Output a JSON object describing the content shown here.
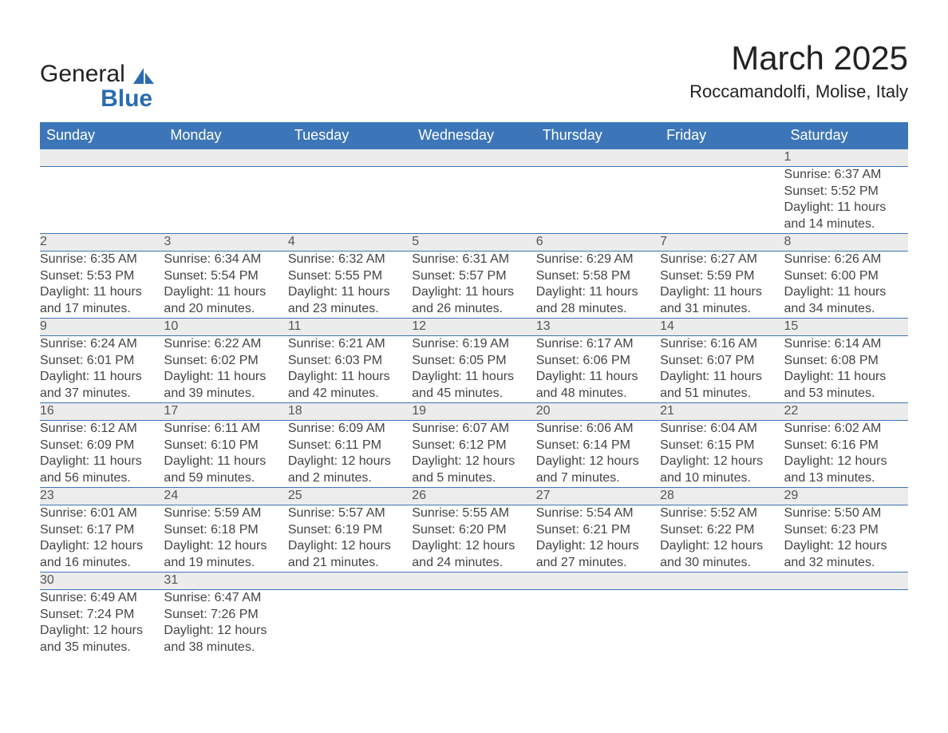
{
  "logo": {
    "line1": "General",
    "line2": "Blue"
  },
  "title": "March 2025",
  "subtitle": "Roccamandolfi, Molise, Italy",
  "header_bg": "#3d76b8",
  "days_of_week": [
    "Sunday",
    "Monday",
    "Tuesday",
    "Wednesday",
    "Thursday",
    "Friday",
    "Saturday"
  ],
  "weeks": [
    [
      null,
      null,
      null,
      null,
      null,
      null,
      {
        "n": "1",
        "sr": "Sunrise: 6:37 AM",
        "ss": "Sunset: 5:52 PM",
        "d1": "Daylight: 11 hours",
        "d2": "and 14 minutes."
      }
    ],
    [
      {
        "n": "2",
        "sr": "Sunrise: 6:35 AM",
        "ss": "Sunset: 5:53 PM",
        "d1": "Daylight: 11 hours",
        "d2": "and 17 minutes."
      },
      {
        "n": "3",
        "sr": "Sunrise: 6:34 AM",
        "ss": "Sunset: 5:54 PM",
        "d1": "Daylight: 11 hours",
        "d2": "and 20 minutes."
      },
      {
        "n": "4",
        "sr": "Sunrise: 6:32 AM",
        "ss": "Sunset: 5:55 PM",
        "d1": "Daylight: 11 hours",
        "d2": "and 23 minutes."
      },
      {
        "n": "5",
        "sr": "Sunrise: 6:31 AM",
        "ss": "Sunset: 5:57 PM",
        "d1": "Daylight: 11 hours",
        "d2": "and 26 minutes."
      },
      {
        "n": "6",
        "sr": "Sunrise: 6:29 AM",
        "ss": "Sunset: 5:58 PM",
        "d1": "Daylight: 11 hours",
        "d2": "and 28 minutes."
      },
      {
        "n": "7",
        "sr": "Sunrise: 6:27 AM",
        "ss": "Sunset: 5:59 PM",
        "d1": "Daylight: 11 hours",
        "d2": "and 31 minutes."
      },
      {
        "n": "8",
        "sr": "Sunrise: 6:26 AM",
        "ss": "Sunset: 6:00 PM",
        "d1": "Daylight: 11 hours",
        "d2": "and 34 minutes."
      }
    ],
    [
      {
        "n": "9",
        "sr": "Sunrise: 6:24 AM",
        "ss": "Sunset: 6:01 PM",
        "d1": "Daylight: 11 hours",
        "d2": "and 37 minutes."
      },
      {
        "n": "10",
        "sr": "Sunrise: 6:22 AM",
        "ss": "Sunset: 6:02 PM",
        "d1": "Daylight: 11 hours",
        "d2": "and 39 minutes."
      },
      {
        "n": "11",
        "sr": "Sunrise: 6:21 AM",
        "ss": "Sunset: 6:03 PM",
        "d1": "Daylight: 11 hours",
        "d2": "and 42 minutes."
      },
      {
        "n": "12",
        "sr": "Sunrise: 6:19 AM",
        "ss": "Sunset: 6:05 PM",
        "d1": "Daylight: 11 hours",
        "d2": "and 45 minutes."
      },
      {
        "n": "13",
        "sr": "Sunrise: 6:17 AM",
        "ss": "Sunset: 6:06 PM",
        "d1": "Daylight: 11 hours",
        "d2": "and 48 minutes."
      },
      {
        "n": "14",
        "sr": "Sunrise: 6:16 AM",
        "ss": "Sunset: 6:07 PM",
        "d1": "Daylight: 11 hours",
        "d2": "and 51 minutes."
      },
      {
        "n": "15",
        "sr": "Sunrise: 6:14 AM",
        "ss": "Sunset: 6:08 PM",
        "d1": "Daylight: 11 hours",
        "d2": "and 53 minutes."
      }
    ],
    [
      {
        "n": "16",
        "sr": "Sunrise: 6:12 AM",
        "ss": "Sunset: 6:09 PM",
        "d1": "Daylight: 11 hours",
        "d2": "and 56 minutes."
      },
      {
        "n": "17",
        "sr": "Sunrise: 6:11 AM",
        "ss": "Sunset: 6:10 PM",
        "d1": "Daylight: 11 hours",
        "d2": "and 59 minutes."
      },
      {
        "n": "18",
        "sr": "Sunrise: 6:09 AM",
        "ss": "Sunset: 6:11 PM",
        "d1": "Daylight: 12 hours",
        "d2": "and 2 minutes."
      },
      {
        "n": "19",
        "sr": "Sunrise: 6:07 AM",
        "ss": "Sunset: 6:12 PM",
        "d1": "Daylight: 12 hours",
        "d2": "and 5 minutes."
      },
      {
        "n": "20",
        "sr": "Sunrise: 6:06 AM",
        "ss": "Sunset: 6:14 PM",
        "d1": "Daylight: 12 hours",
        "d2": "and 7 minutes."
      },
      {
        "n": "21",
        "sr": "Sunrise: 6:04 AM",
        "ss": "Sunset: 6:15 PM",
        "d1": "Daylight: 12 hours",
        "d2": "and 10 minutes."
      },
      {
        "n": "22",
        "sr": "Sunrise: 6:02 AM",
        "ss": "Sunset: 6:16 PM",
        "d1": "Daylight: 12 hours",
        "d2": "and 13 minutes."
      }
    ],
    [
      {
        "n": "23",
        "sr": "Sunrise: 6:01 AM",
        "ss": "Sunset: 6:17 PM",
        "d1": "Daylight: 12 hours",
        "d2": "and 16 minutes."
      },
      {
        "n": "24",
        "sr": "Sunrise: 5:59 AM",
        "ss": "Sunset: 6:18 PM",
        "d1": "Daylight: 12 hours",
        "d2": "and 19 minutes."
      },
      {
        "n": "25",
        "sr": "Sunrise: 5:57 AM",
        "ss": "Sunset: 6:19 PM",
        "d1": "Daylight: 12 hours",
        "d2": "and 21 minutes."
      },
      {
        "n": "26",
        "sr": "Sunrise: 5:55 AM",
        "ss": "Sunset: 6:20 PM",
        "d1": "Daylight: 12 hours",
        "d2": "and 24 minutes."
      },
      {
        "n": "27",
        "sr": "Sunrise: 5:54 AM",
        "ss": "Sunset: 6:21 PM",
        "d1": "Daylight: 12 hours",
        "d2": "and 27 minutes."
      },
      {
        "n": "28",
        "sr": "Sunrise: 5:52 AM",
        "ss": "Sunset: 6:22 PM",
        "d1": "Daylight: 12 hours",
        "d2": "and 30 minutes."
      },
      {
        "n": "29",
        "sr": "Sunrise: 5:50 AM",
        "ss": "Sunset: 6:23 PM",
        "d1": "Daylight: 12 hours",
        "d2": "and 32 minutes."
      }
    ],
    [
      {
        "n": "30",
        "sr": "Sunrise: 6:49 AM",
        "ss": "Sunset: 7:24 PM",
        "d1": "Daylight: 12 hours",
        "d2": "and 35 minutes."
      },
      {
        "n": "31",
        "sr": "Sunrise: 6:47 AM",
        "ss": "Sunset: 7:26 PM",
        "d1": "Daylight: 12 hours",
        "d2": "and 38 minutes."
      },
      null,
      null,
      null,
      null,
      null
    ]
  ]
}
